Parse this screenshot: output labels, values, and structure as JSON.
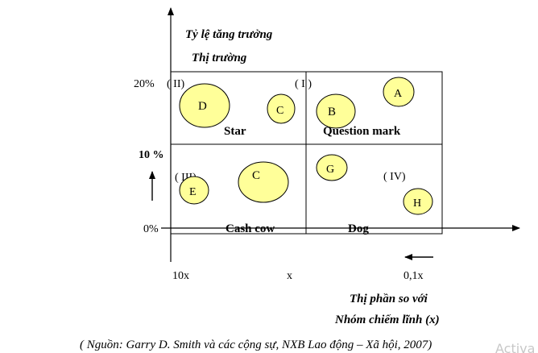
{
  "axes": {
    "y_title_line1": "Tỷ lệ tăng trưởng",
    "y_title_line2": "Thị trường",
    "x_title_line1": "Thị phần so với",
    "x_title_line2": "Nhóm chiếm lĩnh (x)"
  },
  "y_ticks": {
    "high": "20%",
    "mid": "10 %",
    "low": "0%"
  },
  "x_ticks": {
    "left": "10x",
    "mid": "x",
    "right": "0,1x"
  },
  "quadrants": {
    "top_left": {
      "numeral": "( II)",
      "name": "Star"
    },
    "top_right": {
      "numeral": "( I )",
      "name": "Question mark"
    },
    "bottom_left": {
      "numeral": "( III)",
      "name": "Cash cow"
    },
    "bottom_right": {
      "numeral": "( IV)",
      "name": "Dog"
    }
  },
  "bubbles": [
    {
      "label": "D",
      "quadrant": "Star"
    },
    {
      "label": "C",
      "quadrant": "Star"
    },
    {
      "label": "B",
      "quadrant": "Question mark"
    },
    {
      "label": "A",
      "quadrant": "Question mark"
    },
    {
      "label": "E",
      "quadrant": "Cash cow"
    },
    {
      "label": "C",
      "quadrant": "Cash cow"
    },
    {
      "label": "G",
      "quadrant": "Dog"
    },
    {
      "label": "H",
      "quadrant": "Dog"
    }
  ],
  "source": "( Nguồn: Garry D. Smith và các cộng sự, NXB Lao động – Xã hội, 2007)",
  "watermark": "Activa",
  "colors": {
    "bubble_fill": "#FFFF99",
    "line": "#000000",
    "watermark": "#C8C8C8"
  }
}
